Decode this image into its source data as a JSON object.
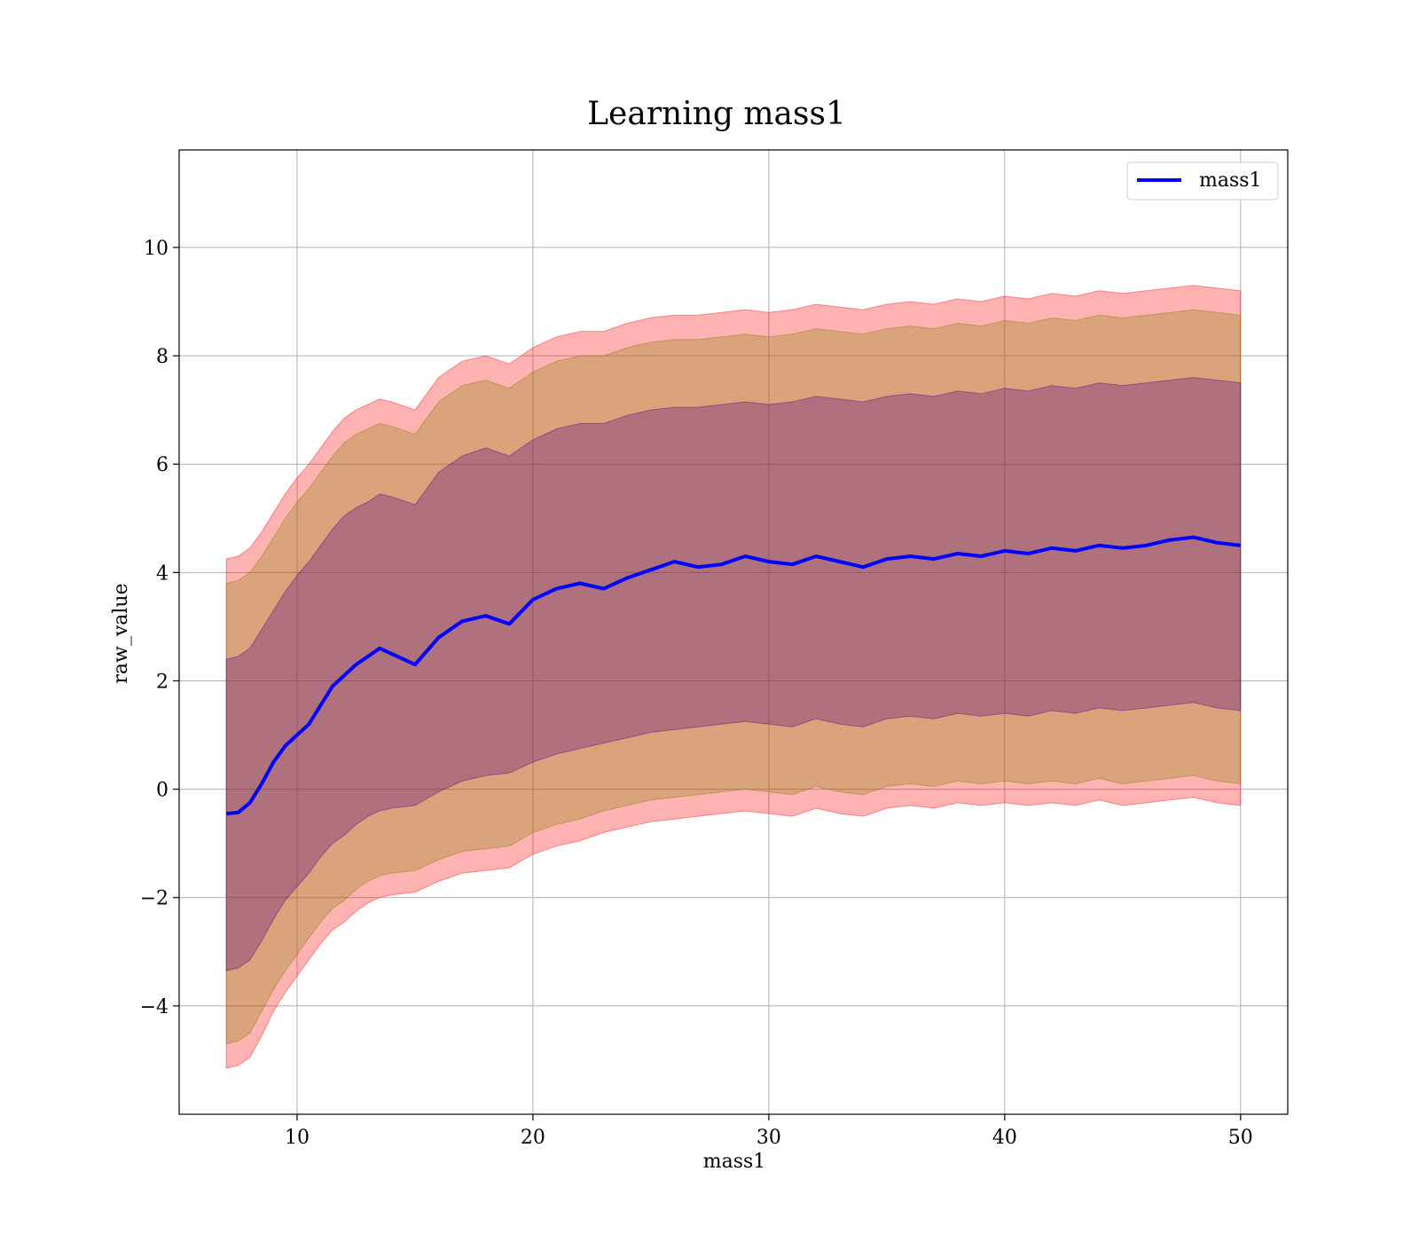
{
  "chart_data": {
    "type": "line",
    "title": "Learning mass1",
    "xlabel": "mass1",
    "ylabel": "raw_value",
    "xlim": [
      5,
      52
    ],
    "ylim": [
      -6,
      11.8
    ],
    "xticks": [
      10,
      20,
      30,
      40,
      50
    ],
    "yticks": [
      -4,
      -2,
      0,
      2,
      4,
      6,
      8,
      10
    ],
    "xtick_labels": [
      "10",
      "20",
      "30",
      "40",
      "50"
    ],
    "ytick_labels": [
      "−4",
      "−2",
      "0",
      "2",
      "4",
      "6",
      "8",
      "10"
    ],
    "grid": true,
    "legend": {
      "placement": "top-right",
      "entries": [
        {
          "label": "mass1",
          "color": "#0000ff"
        }
      ]
    },
    "series": [
      {
        "name": "mass1",
        "color": "#0000ff",
        "x": [
          7,
          7.5,
          8,
          8.5,
          9,
          9.5,
          10,
          10.5,
          11,
          11.5,
          12,
          12.5,
          13,
          13.5,
          14,
          15,
          16,
          17,
          18,
          19,
          20,
          21,
          22,
          23,
          24,
          25,
          26,
          27,
          28,
          29,
          30,
          31,
          32,
          33,
          34,
          35,
          36,
          37,
          38,
          39,
          40,
          41,
          42,
          43,
          44,
          45,
          46,
          47,
          48,
          49,
          50
        ],
        "y": [
          -0.45,
          -0.43,
          -0.25,
          0.1,
          0.5,
          0.8,
          1.0,
          1.2,
          1.55,
          1.9,
          2.1,
          2.3,
          2.45,
          2.6,
          2.5,
          2.3,
          2.8,
          3.1,
          3.2,
          3.05,
          3.5,
          3.7,
          3.8,
          3.7,
          3.9,
          4.05,
          4.2,
          4.1,
          4.15,
          4.3,
          4.2,
          4.15,
          4.3,
          4.2,
          4.1,
          4.25,
          4.3,
          4.25,
          4.35,
          4.3,
          4.4,
          4.35,
          4.45,
          4.4,
          4.5,
          4.45,
          4.5,
          4.6,
          4.65,
          4.55,
          4.5
        ]
      }
    ],
    "bands": [
      {
        "color": "#ff0000",
        "opacity": 0.3,
        "lower": [
          -5.15,
          -5.1,
          -4.95,
          -4.55,
          -4.1,
          -3.75,
          -3.45,
          -3.15,
          -2.85,
          -2.6,
          -2.45,
          -2.25,
          -2.1,
          -2.0,
          -1.95,
          -1.9,
          -1.7,
          -1.55,
          -1.5,
          -1.45,
          -1.2,
          -1.05,
          -0.95,
          -0.8,
          -0.7,
          -0.6,
          -0.55,
          -0.5,
          -0.45,
          -0.4,
          -0.45,
          -0.5,
          -0.35,
          -0.45,
          -0.5,
          -0.35,
          -0.3,
          -0.35,
          -0.25,
          -0.3,
          -0.25,
          -0.3,
          -0.25,
          -0.3,
          -0.2,
          -0.3,
          -0.25,
          -0.2,
          -0.15,
          -0.25,
          -0.3
        ],
        "upper": [
          4.25,
          4.3,
          4.45,
          4.75,
          5.1,
          5.45,
          5.75,
          6.0,
          6.3,
          6.6,
          6.85,
          7.0,
          7.1,
          7.2,
          7.15,
          7.0,
          7.6,
          7.9,
          8.0,
          7.85,
          8.15,
          8.35,
          8.45,
          8.45,
          8.6,
          8.7,
          8.75,
          8.75,
          8.8,
          8.85,
          8.8,
          8.85,
          8.95,
          8.9,
          8.85,
          8.95,
          9.0,
          8.95,
          9.05,
          9.0,
          9.1,
          9.05,
          9.15,
          9.1,
          9.2,
          9.15,
          9.2,
          9.25,
          9.3,
          9.25,
          9.2
        ]
      },
      {
        "color": "#808000",
        "opacity": 0.3,
        "lower": [
          -4.7,
          -4.65,
          -4.5,
          -4.1,
          -3.7,
          -3.35,
          -3.05,
          -2.75,
          -2.45,
          -2.2,
          -2.05,
          -1.85,
          -1.7,
          -1.6,
          -1.55,
          -1.5,
          -1.3,
          -1.15,
          -1.1,
          -1.05,
          -0.8,
          -0.65,
          -0.55,
          -0.4,
          -0.3,
          -0.2,
          -0.15,
          -0.1,
          -0.05,
          0.0,
          -0.05,
          -0.1,
          0.05,
          -0.05,
          -0.1,
          0.05,
          0.1,
          0.05,
          0.15,
          0.1,
          0.15,
          0.1,
          0.15,
          0.1,
          0.2,
          0.1,
          0.15,
          0.2,
          0.25,
          0.15,
          0.1
        ],
        "upper": [
          3.8,
          3.85,
          4.0,
          4.3,
          4.65,
          5.0,
          5.3,
          5.55,
          5.85,
          6.15,
          6.4,
          6.55,
          6.65,
          6.75,
          6.7,
          6.55,
          7.15,
          7.45,
          7.55,
          7.4,
          7.7,
          7.9,
          8.0,
          8.0,
          8.15,
          8.25,
          8.3,
          8.3,
          8.35,
          8.4,
          8.35,
          8.4,
          8.5,
          8.45,
          8.4,
          8.5,
          8.55,
          8.5,
          8.6,
          8.55,
          8.65,
          8.6,
          8.7,
          8.65,
          8.75,
          8.7,
          8.75,
          8.8,
          8.85,
          8.8,
          8.75
        ]
      },
      {
        "color": "#4b0082",
        "opacity": 0.3,
        "lower": [
          -3.35,
          -3.3,
          -3.15,
          -2.8,
          -2.4,
          -2.05,
          -1.8,
          -1.55,
          -1.25,
          -1.0,
          -0.85,
          -0.65,
          -0.5,
          -0.4,
          -0.35,
          -0.3,
          -0.05,
          0.15,
          0.25,
          0.3,
          0.5,
          0.65,
          0.75,
          0.85,
          0.95,
          1.05,
          1.1,
          1.15,
          1.2,
          1.25,
          1.2,
          1.15,
          1.3,
          1.2,
          1.15,
          1.3,
          1.35,
          1.3,
          1.4,
          1.35,
          1.4,
          1.35,
          1.45,
          1.4,
          1.5,
          1.45,
          1.5,
          1.55,
          1.6,
          1.5,
          1.45
        ],
        "upper": [
          2.4,
          2.45,
          2.6,
          2.95,
          3.3,
          3.65,
          3.95,
          4.2,
          4.5,
          4.8,
          5.05,
          5.2,
          5.3,
          5.45,
          5.4,
          5.25,
          5.85,
          6.15,
          6.3,
          6.15,
          6.45,
          6.65,
          6.75,
          6.75,
          6.9,
          7.0,
          7.05,
          7.05,
          7.1,
          7.15,
          7.1,
          7.15,
          7.25,
          7.2,
          7.15,
          7.25,
          7.3,
          7.25,
          7.35,
          7.3,
          7.4,
          7.35,
          7.45,
          7.4,
          7.5,
          7.45,
          7.5,
          7.55,
          7.6,
          7.55,
          7.5
        ]
      }
    ]
  }
}
